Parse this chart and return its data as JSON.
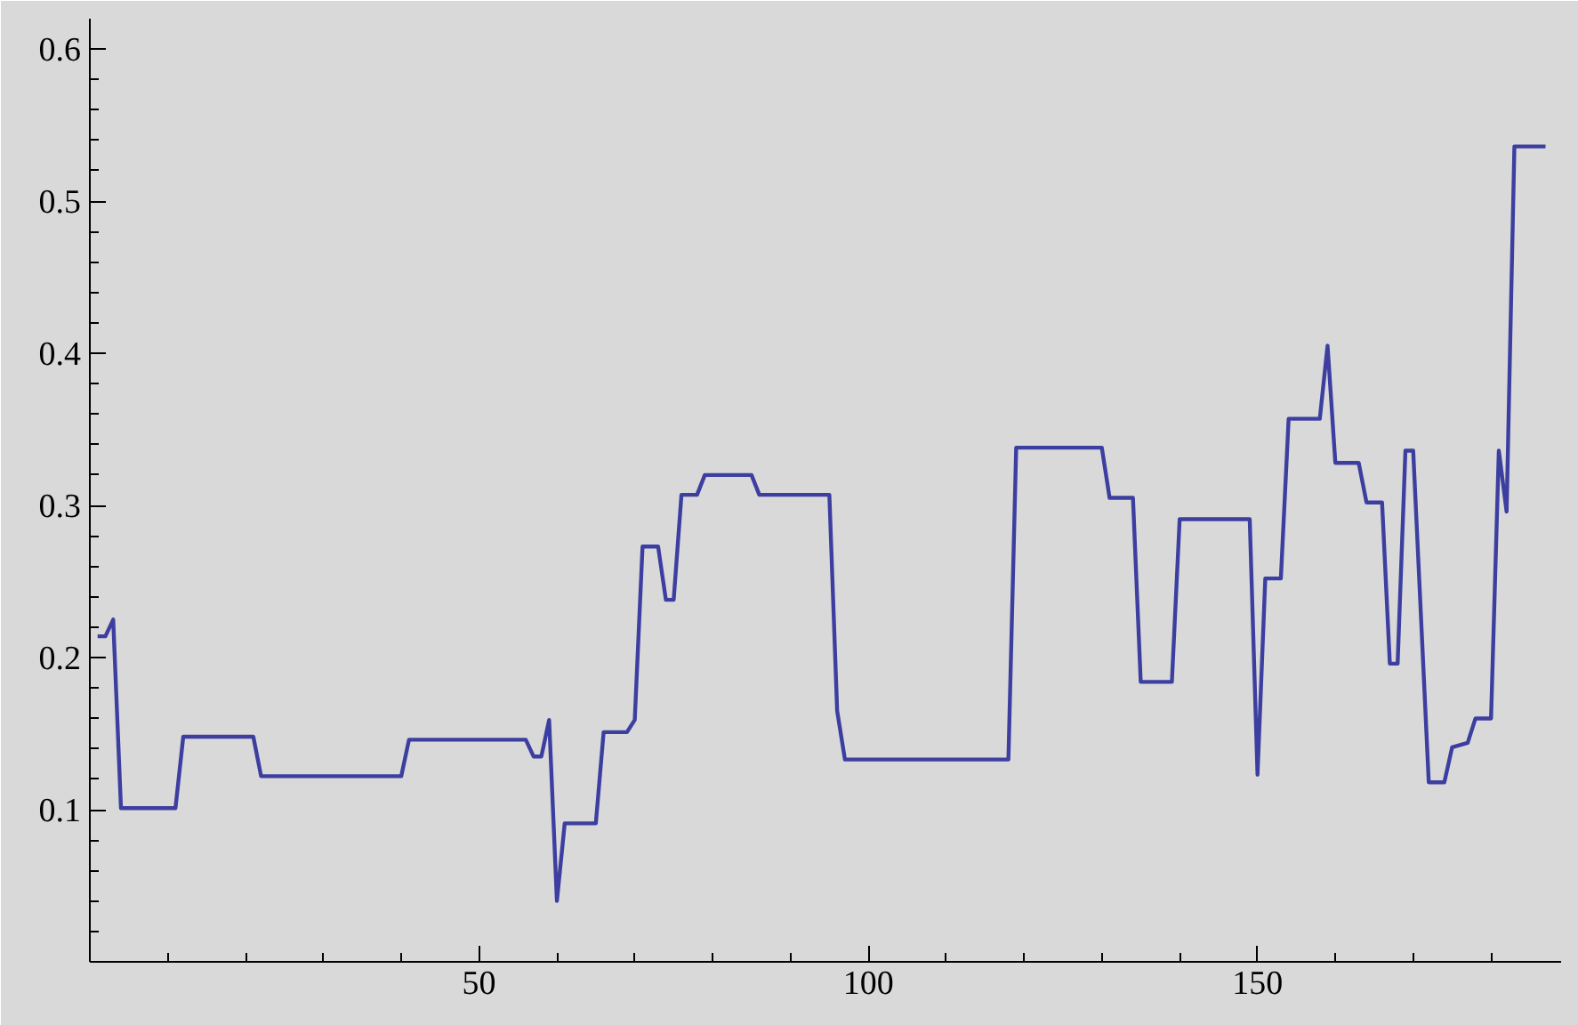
{
  "chart_data": {
    "type": "line",
    "x": [
      1,
      2,
      3,
      4,
      11,
      12,
      21,
      22,
      40,
      41,
      56,
      57,
      58,
      59,
      60,
      61,
      65,
      66,
      69,
      70,
      71,
      73,
      74,
      75,
      76,
      78,
      79,
      85,
      86,
      95,
      96,
      97,
      118,
      119,
      130,
      131,
      134,
      135,
      139,
      140,
      149,
      150,
      151,
      153,
      154,
      158,
      159,
      160,
      163,
      164,
      166,
      167,
      168,
      169,
      170,
      172,
      174,
      175,
      177,
      178,
      180,
      181,
      182,
      183,
      187
    ],
    "series": [
      {
        "color": "#3d3fa0",
        "values": [
          0.214,
          0.214,
          0.225,
          0.101,
          0.101,
          0.148,
          0.148,
          0.122,
          0.122,
          0.146,
          0.146,
          0.135,
          0.135,
          0.159,
          0.04,
          0.091,
          0.091,
          0.151,
          0.151,
          0.159,
          0.273,
          0.273,
          0.238,
          0.238,
          0.307,
          0.307,
          0.32,
          0.32,
          0.307,
          0.307,
          0.165,
          0.133,
          0.133,
          0.338,
          0.338,
          0.305,
          0.305,
          0.184,
          0.184,
          0.291,
          0.291,
          0.123,
          0.252,
          0.252,
          0.357,
          0.357,
          0.405,
          0.328,
          0.328,
          0.302,
          0.302,
          0.196,
          0.196,
          0.336,
          0.336,
          0.118,
          0.118,
          0.141,
          0.144,
          0.16,
          0.16,
          0.336,
          0.296,
          0.536,
          0.536
        ]
      }
    ],
    "xlim": [
      0,
      189
    ],
    "ylim": [
      0,
      0.62
    ],
    "xticks": [
      {
        "value": 10,
        "label": null
      },
      {
        "value": 20,
        "label": null
      },
      {
        "value": 30,
        "label": null
      },
      {
        "value": 40,
        "label": null
      },
      50,
      {
        "value": 60,
        "label": null
      },
      {
        "value": 70,
        "label": null
      },
      {
        "value": 80,
        "label": null
      },
      {
        "value": 90,
        "label": null
      },
      100,
      {
        "value": 110,
        "label": null
      },
      {
        "value": 120,
        "label": null
      },
      {
        "value": 130,
        "label": null
      },
      {
        "value": 140,
        "label": null
      },
      150,
      {
        "value": 160,
        "label": null
      },
      {
        "value": 170,
        "label": null
      },
      {
        "value": 180,
        "label": null
      }
    ],
    "yticks": [
      {
        "value": 0.02,
        "label": null
      },
      {
        "value": 0.04,
        "label": null
      },
      {
        "value": 0.06,
        "label": null
      },
      {
        "value": 0.08,
        "label": null
      },
      0.1,
      {
        "value": 0.12,
        "label": null
      },
      {
        "value": 0.14,
        "label": null
      },
      {
        "value": 0.16,
        "label": null
      },
      {
        "value": 0.18,
        "label": null
      },
      0.2,
      {
        "value": 0.22,
        "label": null
      },
      {
        "value": 0.24,
        "label": null
      },
      {
        "value": 0.26,
        "label": null
      },
      {
        "value": 0.28,
        "label": null
      },
      0.3,
      {
        "value": 0.32,
        "label": null
      },
      {
        "value": 0.34,
        "label": null
      },
      {
        "value": 0.36,
        "label": null
      },
      {
        "value": 0.38,
        "label": null
      },
      0.4,
      {
        "value": 0.42,
        "label": null
      },
      {
        "value": 0.44,
        "label": null
      },
      {
        "value": 0.46,
        "label": null
      },
      {
        "value": 0.48,
        "label": null
      },
      0.5,
      {
        "value": 0.52,
        "label": null
      },
      {
        "value": 0.54,
        "label": null
      },
      {
        "value": 0.56,
        "label": null
      },
      {
        "value": 0.58,
        "label": null
      },
      0.6
    ],
    "grid": false,
    "marker": "none",
    "line_style": "solid"
  }
}
